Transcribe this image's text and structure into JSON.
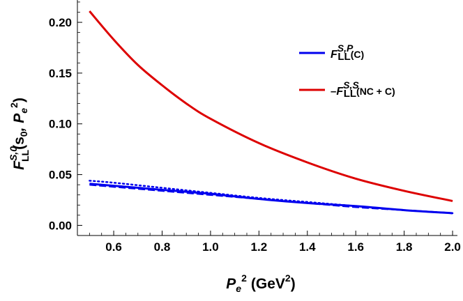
{
  "chart_data": {
    "type": "line",
    "xlabel": {
      "base": "P",
      "sub": "e",
      "sup": "2",
      "unit_open": "(GeV",
      "unit_sup": "2",
      "unit_close": ")"
    },
    "ylabel": {
      "base": "F",
      "sup": "S,0",
      "sub": "LL",
      "args": "(s",
      "args_sub": "0",
      "args_mid": ", P",
      "args_sub2": "e",
      "args_sup2": "2",
      "args_close": ")"
    },
    "xlim": [
      0.45,
      2.02
    ],
    "ylim": [
      -0.01,
      0.222
    ],
    "x_ticks": [
      "0.6",
      "0.8",
      "1.0",
      "1.2",
      "1.4",
      "1.6",
      "1.8",
      "2.0"
    ],
    "x_tick_values": [
      0.6,
      0.8,
      1.0,
      1.2,
      1.4,
      1.6,
      1.8,
      2.0
    ],
    "y_ticks": [
      "0.00",
      "0.05",
      "0.10",
      "0.15",
      "0.20"
    ],
    "y_tick_values": [
      0.0,
      0.05,
      0.1,
      0.15,
      0.2
    ],
    "legend_position": "top-right",
    "series": [
      {
        "name_parts": {
          "prefix": "",
          "base": "F",
          "sup": "S,P",
          "sub": "LL",
          "tail": "(C)"
        },
        "color": "#0000ee",
        "style": "solid",
        "x": [
          0.5,
          0.6,
          0.8,
          1.0,
          1.2,
          1.4,
          1.6,
          1.8,
          2.0
        ],
        "y": [
          0.041,
          0.039,
          0.035,
          0.031,
          0.026,
          0.022,
          0.019,
          0.015,
          0.012
        ]
      },
      {
        "name_parts": {
          "prefix": "–",
          "base": "F",
          "sup": "S,S",
          "sub": "LL",
          "tail": "(NC + C)"
        },
        "color": "#dd0000",
        "style": "solid",
        "x": [
          0.5,
          0.6,
          0.7,
          0.8,
          0.9,
          1.0,
          1.2,
          1.4,
          1.6,
          1.8,
          2.0
        ],
        "y": [
          0.211,
          0.183,
          0.158,
          0.138,
          0.12,
          0.105,
          0.081,
          0.062,
          0.046,
          0.034,
          0.024
        ]
      },
      {
        "name_parts": null,
        "color": "#0000ee",
        "style": "dashed",
        "x": [
          0.5,
          0.6,
          0.8,
          1.0,
          1.2,
          1.4,
          1.6,
          1.8,
          2.0
        ],
        "y": [
          0.04,
          0.038,
          0.034,
          0.03,
          0.026,
          0.022,
          0.018,
          0.015,
          0.012
        ]
      },
      {
        "name_parts": null,
        "color": "#0000ee",
        "style": "dotted",
        "x": [
          0.5,
          0.6,
          0.8,
          1.0,
          1.2,
          1.4,
          1.6,
          1.8,
          2.0
        ],
        "y": [
          0.044,
          0.042,
          0.037,
          0.032,
          0.027,
          0.023,
          0.019,
          0.015,
          0.012
        ]
      }
    ]
  }
}
